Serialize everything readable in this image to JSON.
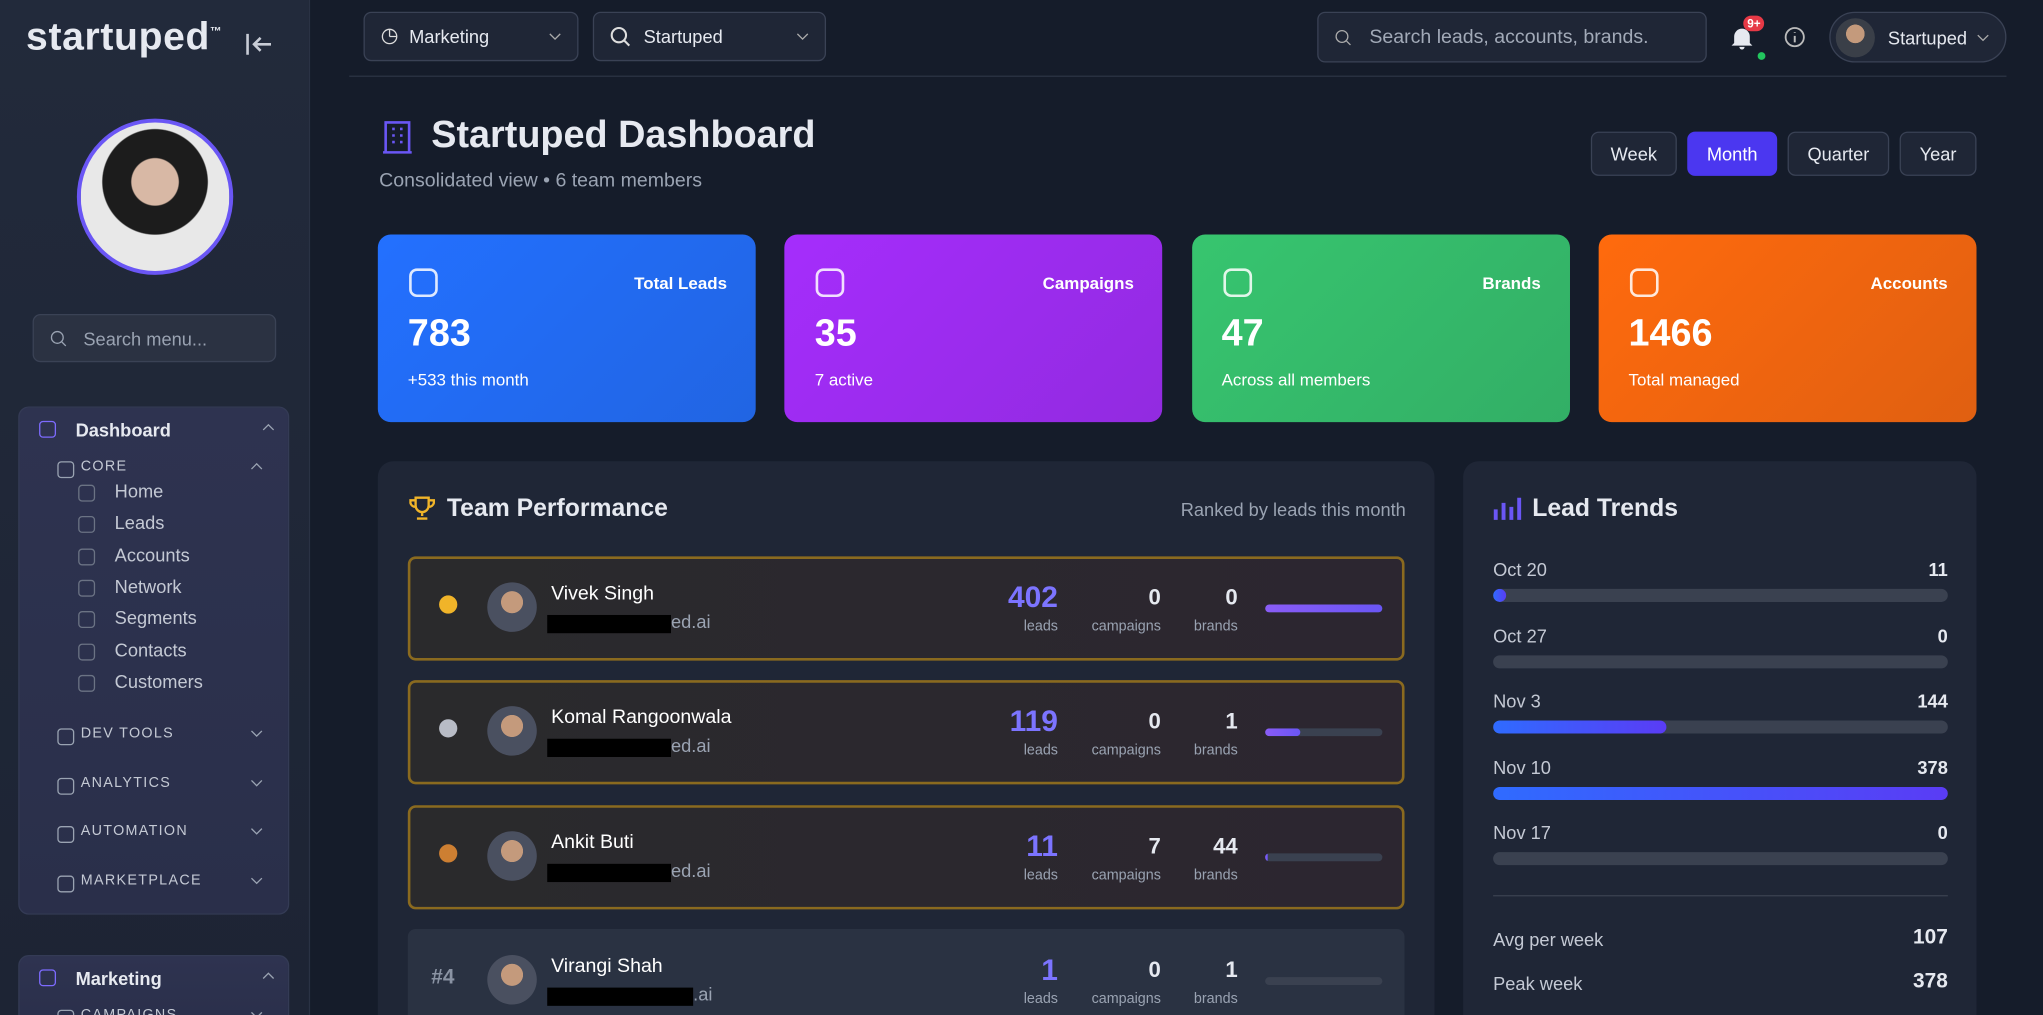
{
  "sidebar": {
    "logo": "startuped",
    "logo_mark": "™",
    "search_placeholder": "Search menu...",
    "sections": [
      {
        "label": "Dashboard",
        "groups": [
          {
            "label": "CORE",
            "items": [
              "Home",
              "Leads",
              "Accounts",
              "Network",
              "Segments",
              "Contacts",
              "Customers"
            ]
          },
          {
            "label": "DEV TOOLS"
          },
          {
            "label": "ANALYTICS"
          },
          {
            "label": "AUTOMATION"
          },
          {
            "label": "MARKETPLACE"
          }
        ]
      },
      {
        "label": "Marketing",
        "groups": [
          {
            "label": "CAMPAIGNS"
          }
        ]
      }
    ]
  },
  "topbar": {
    "workspace": "Marketing",
    "org": "Startuped",
    "search_placeholder": "Search leads, accounts, brands.",
    "notifications": "9+",
    "user": "Startuped"
  },
  "header": {
    "title": "Startuped Dashboard",
    "subtitle": "Consolidated view • 6 team members",
    "periods": [
      "Week",
      "Month",
      "Quarter",
      "Year"
    ],
    "active_period": 1
  },
  "stats": [
    {
      "label": "Total Leads",
      "value": 783,
      "note": "+533 this month",
      "color": "#2370ff"
    },
    {
      "label": "Campaigns",
      "value": 35,
      "note": "7 active",
      "color": "#a52dfc"
    },
    {
      "label": "Brands",
      "value": 47,
      "note": "Across all members",
      "color": "#37c56f"
    },
    {
      "label": "Accounts",
      "value": 1466,
      "note": "Total managed",
      "color": "#ff6a0d"
    }
  ],
  "team": {
    "title": "Team Performance",
    "note": "Ranked by leads this month",
    "columns": [
      "leads",
      "campaigns",
      "brands"
    ],
    "members": [
      {
        "name": "Vivek Singh",
        "email": "ed.ai",
        "leads": 402,
        "campaigns": 0,
        "brands": 0
      },
      {
        "name": "Komal Rangoonwala",
        "email": "ed.ai",
        "leads": 119,
        "campaigns": 0,
        "brands": 1
      },
      {
        "name": "Ankit Buti",
        "email": "ed.ai",
        "leads": 11,
        "campaigns": 7,
        "brands": 44
      },
      {
        "name": "Virangi Shah",
        "email": ".ai",
        "leads": 1,
        "campaigns": 0,
        "brands": 1,
        "rank_label": "#4"
      }
    ]
  },
  "trends": {
    "title": "Lead Trends",
    "weeks": [
      {
        "label": "Oct 20",
        "value": 11
      },
      {
        "label": "Oct 27",
        "value": 0
      },
      {
        "label": "Nov 3",
        "value": 144
      },
      {
        "label": "Nov 10",
        "value": 378
      },
      {
        "label": "Nov 17",
        "value": 0
      }
    ],
    "summary": [
      {
        "label": "Avg per week",
        "value": 107
      },
      {
        "label": "Peak week",
        "value": 378
      }
    ]
  }
}
